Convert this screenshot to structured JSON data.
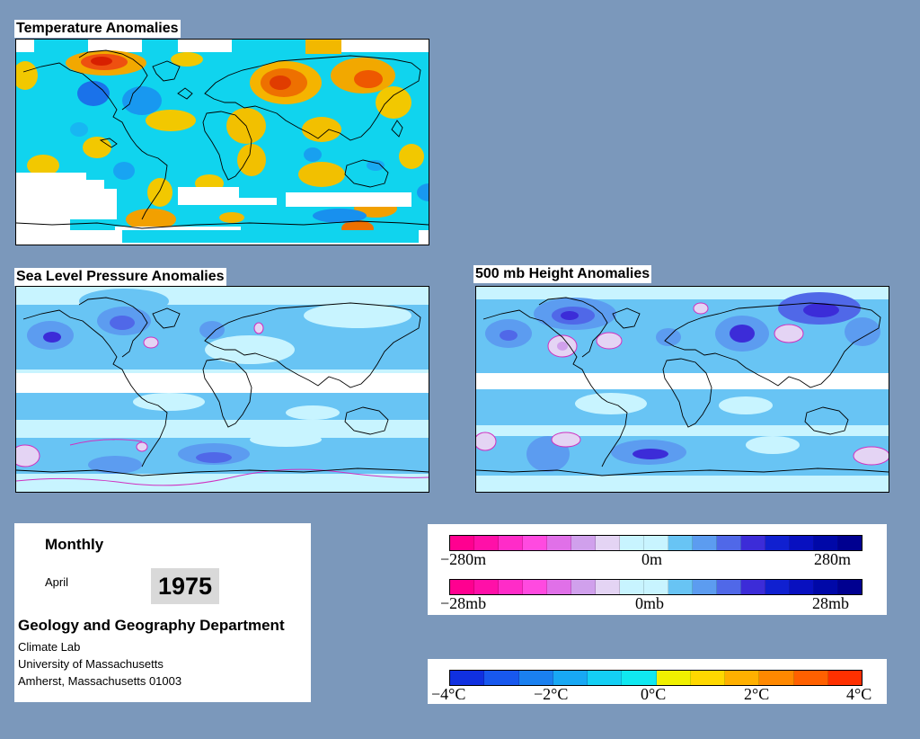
{
  "panels": {
    "temperature": {
      "title": "Temperature Anomalies"
    },
    "slp": {
      "title": "Sea Level Pressure Anomalies"
    },
    "height500": {
      "title": "500 mb Height Anomalies"
    }
  },
  "info": {
    "period": "Monthly",
    "month": "April",
    "year": "1975",
    "department": "Geology and Geography Department",
    "lines": [
      "Climate Lab",
      "University of Massachusetts",
      "Amherst, Massachusetts 01003"
    ]
  },
  "legend_height": {
    "labels": [
      "−280m",
      "0m",
      "280m"
    ],
    "colors": [
      "#ff0090",
      "#ff10a8",
      "#ff2cc8",
      "#ff4ae0",
      "#e070e8",
      "#d0a0ec",
      "#e4d4f4",
      "#c8f4ff",
      "#c8f4ff",
      "#68c4f4",
      "#5c9cf0",
      "#5068e8",
      "#3c2cd8",
      "#1020d0",
      "#0810c0",
      "#0008a8",
      "#000090"
    ]
  },
  "legend_pressure": {
    "labels": [
      "−28mb",
      "0mb",
      "28mb"
    ],
    "colors": [
      "#ff0090",
      "#ff10a8",
      "#ff2cc8",
      "#ff4ae0",
      "#e070e8",
      "#d0a0ec",
      "#e4d4f4",
      "#c8f4ff",
      "#c8f4ff",
      "#68c4f4",
      "#5c9cf0",
      "#5068e8",
      "#3c2cd8",
      "#1020d0",
      "#0810c0",
      "#0008a8",
      "#000090"
    ]
  },
  "legend_temperature": {
    "labels": [
      "−4°C",
      "−2°C",
      "0°C",
      "2°C",
      "4°C"
    ],
    "colors": [
      "#1030e0",
      "#1858ee",
      "#1a80f0",
      "#18a8f4",
      "#14cff4",
      "#10e8f0",
      "#f0f000",
      "#ffd800",
      "#ffb000",
      "#ff8800",
      "#ff6000",
      "#ff3000"
    ]
  },
  "colors": {
    "background": "#7b98bb",
    "temp_base": "#10d4ee",
    "pressure_base": "#c8f4ff"
  }
}
